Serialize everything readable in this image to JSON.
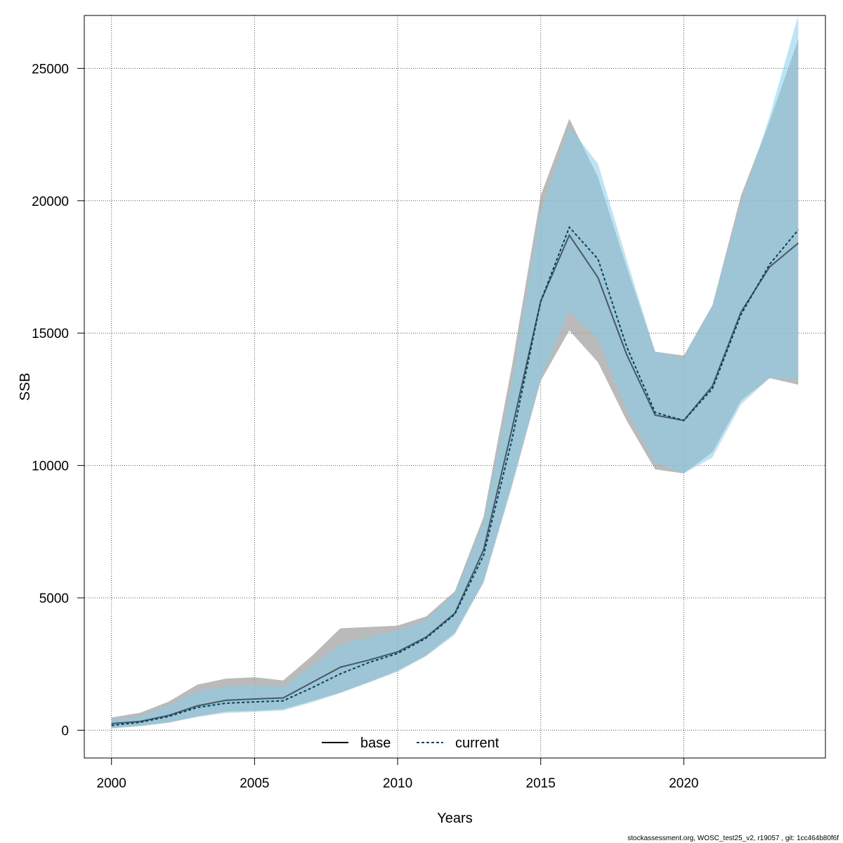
{
  "chart_data": {
    "type": "area",
    "xlabel": "Years",
    "ylabel": "SSB",
    "xlim": [
      1999.05,
      2024.95
    ],
    "ylim": [
      -1050,
      27000
    ],
    "grid": true,
    "legend_position": "bottom-center",
    "x_ticks": [
      2000,
      2005,
      2010,
      2015,
      2020
    ],
    "x_tick_labels": [
      "2000",
      "2005",
      "2010",
      "2015",
      "2020"
    ],
    "y_ticks": [
      0,
      5000,
      10000,
      15000,
      20000,
      25000
    ],
    "y_tick_labels": [
      "0",
      "5000",
      "10000",
      "15000",
      "20000",
      "25000"
    ],
    "x": [
      2000,
      2001,
      2002,
      2003,
      2004,
      2005,
      2006,
      2007,
      2008,
      2009,
      2010,
      2011,
      2012,
      2013,
      2014,
      2015,
      2016,
      2017,
      2018,
      2019,
      2020,
      2021,
      2022,
      2023,
      2024
    ],
    "series": [
      {
        "name": "base",
        "color": "#000000",
        "line_style": "solid",
        "band_color": "#a0a0a0",
        "values": [
          250,
          330,
          560,
          920,
          1130,
          1180,
          1220,
          1800,
          2380,
          2650,
          2960,
          3520,
          4420,
          6800,
          11400,
          16200,
          18700,
          17100,
          14200,
          11900,
          11700,
          13000,
          15800,
          17500,
          18400
        ],
        "lower": [
          80,
          160,
          290,
          520,
          700,
          730,
          790,
          1100,
          1420,
          1820,
          2250,
          2820,
          3680,
          5600,
          9300,
          13200,
          15100,
          13900,
          11700,
          9850,
          9700,
          10500,
          12450,
          13300,
          13050
        ],
        "upper": [
          480,
          660,
          1080,
          1720,
          1950,
          2000,
          1880,
          2800,
          3850,
          3900,
          3950,
          4300,
          5250,
          8050,
          13800,
          20200,
          23100,
          20900,
          17500,
          14300,
          14150,
          16050,
          20200,
          23000,
          26100
        ]
      },
      {
        "name": "current",
        "color": "#01425f",
        "line_style": "dashed",
        "band_color": "#87ceeb",
        "values": [
          180,
          300,
          520,
          860,
          1020,
          1070,
          1110,
          1600,
          2130,
          2560,
          2900,
          3480,
          4380,
          6600,
          11000,
          16200,
          19000,
          17800,
          14500,
          12000,
          11700,
          12900,
          15700,
          17600,
          18900
        ],
        "lower": [
          60,
          150,
          280,
          500,
          650,
          690,
          740,
          1050,
          1400,
          1800,
          2200,
          2800,
          3600,
          5550,
          9200,
          13200,
          15800,
          14800,
          12100,
          10100,
          9700,
          10300,
          12300,
          13300,
          13250
        ],
        "upper": [
          400,
          520,
          920,
          1450,
          1650,
          1680,
          1620,
          2400,
          3230,
          3500,
          3750,
          4150,
          5150,
          7800,
          13100,
          19600,
          22800,
          21400,
          17800,
          14300,
          14050,
          16000,
          19850,
          23200,
          27000
        ]
      }
    ]
  },
  "footer_text": "stockassessment.org, WOSC_test25_v2, r19057 , git: 1cc464b80f6f"
}
